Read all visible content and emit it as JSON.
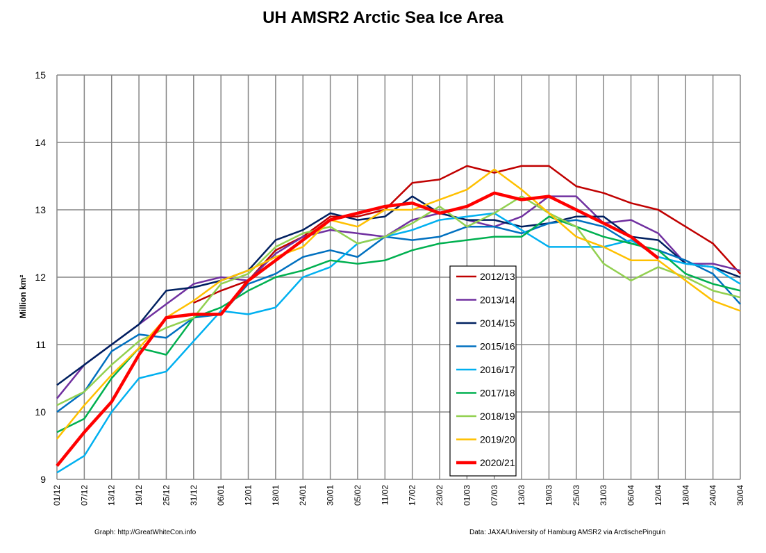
{
  "chart_data": {
    "type": "line",
    "title": "UH AMSR2 Arctic Sea Ice Area",
    "xlabel": "",
    "ylabel": "Million km²",
    "ylim": [
      9,
      15
    ],
    "yticks": [
      "9",
      "10",
      "11",
      "12",
      "13",
      "14",
      "15"
    ],
    "grid": true,
    "legend_position": "center-right",
    "x": [
      "01/12",
      "07/12",
      "13/12",
      "19/12",
      "25/12",
      "31/12",
      "06/01",
      "12/01",
      "18/01",
      "24/01",
      "30/01",
      "05/02",
      "11/02",
      "17/02",
      "23/02",
      "01/03",
      "07/03",
      "13/03",
      "19/03",
      "25/03",
      "31/03",
      "06/04",
      "12/04",
      "18/04",
      "24/04",
      "30/04"
    ],
    "series": [
      {
        "name": "2012/13",
        "color": "#C00000",
        "width": 2.5,
        "values": [
          null,
          null,
          null,
          null,
          null,
          11.62,
          11.8,
          11.95,
          12.4,
          12.6,
          12.9,
          12.9,
          13.0,
          13.4,
          13.45,
          13.65,
          13.55,
          13.65,
          13.65,
          13.35,
          13.25,
          13.1,
          13.0,
          12.75,
          12.5,
          12.05
        ]
      },
      {
        "name": "2013/14",
        "color": "#7030A0",
        "width": 2.5,
        "values": [
          10.2,
          10.7,
          11.0,
          11.3,
          11.6,
          11.9,
          12.0,
          11.95,
          12.35,
          12.6,
          12.7,
          12.65,
          12.6,
          12.85,
          12.95,
          12.85,
          12.75,
          12.9,
          13.2,
          13.2,
          12.8,
          12.85,
          12.65,
          12.2,
          12.2,
          12.1
        ]
      },
      {
        "name": "2014/15",
        "color": "#002060",
        "width": 2.5,
        "values": [
          10.4,
          10.7,
          11.0,
          11.3,
          11.8,
          11.85,
          11.95,
          12.1,
          12.55,
          12.7,
          12.95,
          12.85,
          12.9,
          13.2,
          12.95,
          12.85,
          12.85,
          12.75,
          12.8,
          12.9,
          12.9,
          12.6,
          12.55,
          12.2,
          12.15,
          12.0
        ]
      },
      {
        "name": "2015/16",
        "color": "#0070C0",
        "width": 2.5,
        "values": [
          10.0,
          10.3,
          10.9,
          11.15,
          11.1,
          11.4,
          11.45,
          11.9,
          12.05,
          12.3,
          12.4,
          12.3,
          12.6,
          12.55,
          12.6,
          12.75,
          12.75,
          12.65,
          12.8,
          12.85,
          12.75,
          12.5,
          12.4,
          12.25,
          12.05,
          11.6
        ]
      },
      {
        "name": "2016/17",
        "color": "#00B0F0",
        "width": 2.5,
        "values": [
          9.1,
          9.35,
          10.0,
          10.5,
          10.6,
          11.05,
          11.5,
          11.45,
          11.55,
          12.0,
          12.15,
          12.5,
          12.6,
          12.7,
          12.85,
          12.9,
          12.95,
          12.7,
          12.45,
          12.45,
          12.45,
          12.55,
          12.3,
          12.2,
          12.15,
          11.9
        ]
      },
      {
        "name": "2017/18",
        "color": "#00B050",
        "width": 2.5,
        "values": [
          9.7,
          9.9,
          10.5,
          10.95,
          10.85,
          11.4,
          11.55,
          11.8,
          12.0,
          12.1,
          12.25,
          12.2,
          12.25,
          12.4,
          12.5,
          12.55,
          12.6,
          12.6,
          12.9,
          12.75,
          12.6,
          12.5,
          12.4,
          12.05,
          11.9,
          11.8
        ]
      },
      {
        "name": "2018/19",
        "color": "#92D050",
        "width": 2.5,
        "values": [
          10.1,
          10.3,
          10.7,
          11.05,
          11.25,
          11.4,
          11.9,
          12.05,
          12.45,
          12.65,
          12.75,
          12.5,
          12.6,
          12.8,
          13.05,
          12.75,
          12.95,
          13.2,
          12.95,
          12.75,
          12.2,
          11.95,
          12.15,
          12.0,
          11.8,
          11.7
        ]
      },
      {
        "name": "2019/20",
        "color": "#FFC000",
        "width": 2.5,
        "values": [
          9.6,
          10.1,
          10.55,
          10.95,
          11.4,
          11.65,
          11.95,
          12.1,
          12.3,
          12.45,
          12.85,
          12.75,
          13.0,
          13.0,
          13.15,
          13.3,
          13.6,
          13.3,
          12.95,
          12.6,
          12.45,
          12.25,
          12.25,
          11.95,
          11.65,
          11.5
        ]
      },
      {
        "name": "2020/21",
        "color": "#FF0000",
        "width": 4.5,
        "values": [
          9.2,
          9.7,
          10.15,
          10.85,
          11.4,
          11.45,
          11.45,
          11.95,
          12.25,
          12.55,
          12.85,
          12.95,
          13.05,
          13.1,
          12.95,
          13.05,
          13.25,
          13.15,
          13.2,
          13.0,
          12.8,
          12.6,
          12.28,
          null,
          null,
          null
        ]
      }
    ]
  },
  "footer": {
    "left": "Graph: http://GreatWhiteCon.info",
    "right": "Data: JAXA/University of Hamburg AMSR2 via  ArctischePinguin"
  }
}
